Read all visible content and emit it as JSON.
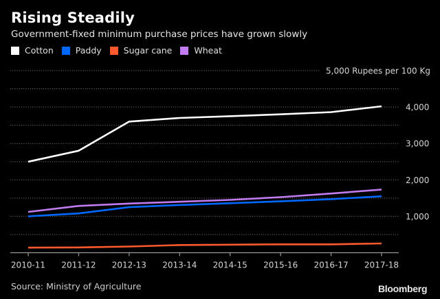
{
  "header": {
    "title": "Rising Steadily",
    "subtitle": "Government-fixed minimum purchase prices have grown slowly"
  },
  "legend": [
    {
      "label": "Cotton",
      "color": "#ffffff"
    },
    {
      "label": "Paddy",
      "color": "#0068ff"
    },
    {
      "label": "Sugar cane",
      "color": "#ff5a2d"
    },
    {
      "label": "Wheat",
      "color": "#c27cf2"
    }
  ],
  "footer": {
    "source": "Source: Ministry of Agriculture",
    "logo": "Bloomberg"
  },
  "chart_data": {
    "type": "line",
    "title": "Rising Steadily",
    "subtitle": "Government-fixed minimum purchase prices have grown slowly",
    "xlabel": "",
    "ylabel": "Rupees per 100 Kg",
    "categories": [
      "2010-11",
      "2011-12",
      "2012-13",
      "2013-14",
      "2014-15",
      "2015-16",
      "2016-17",
      "2017-18"
    ],
    "ylim": [
      0,
      5000
    ],
    "y_gridlines": [
      500,
      1000,
      1500,
      2000,
      2500,
      3000,
      3500,
      4000,
      4500,
      5000
    ],
    "y_tick_labels": [
      {
        "value": 1000,
        "label": "1,000"
      },
      {
        "value": 2000,
        "label": "2,000"
      },
      {
        "value": 3000,
        "label": "3,000"
      },
      {
        "value": 4000,
        "label": "4,000"
      },
      {
        "value": 5000,
        "label": "5,000 Rupees per 100 Kg"
      }
    ],
    "grid": true,
    "legend_position": "top-left",
    "series": [
      {
        "name": "Cotton",
        "color": "#ffffff",
        "values": [
          2500,
          2800,
          3600,
          3700,
          3750,
          3800,
          3860,
          4020
        ]
      },
      {
        "name": "Paddy",
        "color": "#0068ff",
        "values": [
          1000,
          1080,
          1250,
          1310,
          1360,
          1410,
          1470,
          1550
        ]
      },
      {
        "name": "Sugar cane",
        "color": "#ff5a2d",
        "values": [
          139,
          145,
          170,
          210,
          220,
          230,
          230,
          255
        ]
      },
      {
        "name": "Wheat",
        "color": "#c27cf2",
        "values": [
          1120,
          1285,
          1350,
          1400,
          1450,
          1525,
          1625,
          1735
        ]
      }
    ]
  }
}
